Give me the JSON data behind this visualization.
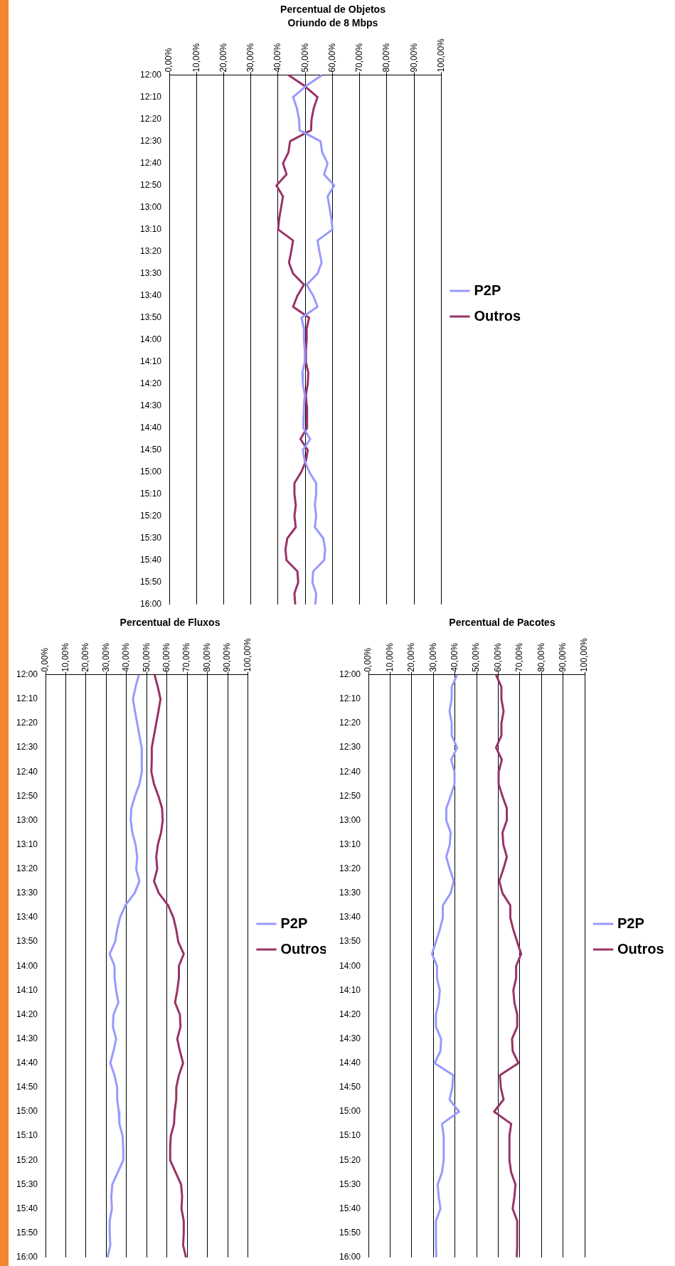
{
  "chart_data": [
    {
      "type": "line",
      "title": "Percentual de Objetos",
      "subtitle": "Oriundo de 8 Mbps",
      "categories": [
        "12:00",
        null,
        "12:10",
        null,
        "12:20",
        null,
        "12:30",
        null,
        "12:40",
        null,
        "12:50",
        null,
        "13:00",
        null,
        "13:10",
        null,
        "13:20",
        null,
        "13:30",
        null,
        "13:40",
        null,
        "13:50",
        null,
        "14:00",
        null,
        "14:10",
        null,
        "14:20",
        null,
        "14:30",
        null,
        "14:40",
        null,
        "14:50",
        null,
        "15:00",
        null,
        "15:10",
        null,
        "15:20",
        null,
        "15:30",
        null,
        "15:40",
        null,
        "15:50",
        null,
        "16:00"
      ],
      "series": [
        {
          "name": "P2P",
          "color": "#9999ff",
          "values": [
            56.2,
            50.2,
            45.5,
            46.9,
            47.7,
            47.9,
            55.6,
            56.2,
            58.2,
            56.9,
            60.6,
            58.2,
            58.9,
            59.6,
            60,
            54.5,
            55.2,
            56,
            54.5,
            50.5,
            52.9,
            54.5,
            48.6,
            49.5,
            49.5,
            49.8,
            49.8,
            48.9,
            49.1,
            49.8,
            49.5,
            49.4,
            49.3,
            51.8,
            49.1,
            49.8,
            51.5,
            54,
            54,
            53.5,
            54,
            53.5,
            56.6,
            57.3,
            56.9,
            52.9,
            52.6,
            54,
            53.7
          ]
        },
        {
          "name": "Outros",
          "color": "#993366",
          "values": [
            43.8,
            49.8,
            54.5,
            53.1,
            52.3,
            52.1,
            44.4,
            43.8,
            41.8,
            43.1,
            39.4,
            41.8,
            41.1,
            40.4,
            40,
            45.5,
            44.8,
            44,
            45.5,
            49.5,
            47.1,
            45.5,
            51.4,
            50.5,
            50.5,
            50.2,
            50.2,
            51.1,
            50.9,
            50.2,
            50.5,
            50.6,
            50.7,
            48.2,
            50.9,
            50.2,
            48.5,
            46,
            46,
            46.5,
            46,
            46.5,
            43.4,
            42.7,
            43.1,
            47.1,
            47.4,
            46,
            46.3
          ]
        }
      ],
      "orientation": "horizontal",
      "xlim": [
        0,
        100
      ],
      "xticks": [
        {
          "value": 0,
          "label": "0,00%"
        },
        {
          "value": 10,
          "label": "10,00%"
        },
        {
          "value": 20,
          "label": "20,00%"
        },
        {
          "value": 30,
          "label": "30,00%"
        },
        {
          "value": 40,
          "label": "40,00%"
        },
        {
          "value": 50,
          "label": "50,00%"
        },
        {
          "value": 60,
          "label": "60,00%"
        },
        {
          "value": 70,
          "label": "70,00%"
        },
        {
          "value": 80,
          "label": "80,00%"
        },
        {
          "value": 90,
          "label": "90,00%"
        },
        {
          "value": 100,
          "label": "100,00%"
        }
      ],
      "grid": "x",
      "legend": "right"
    },
    {
      "type": "line",
      "title": "Percentual de Pacotes",
      "categories": [
        "12:00",
        null,
        "12:10",
        null,
        "12:20",
        null,
        "12:30",
        null,
        "12:40",
        null,
        "12:50",
        null,
        "13:00",
        null,
        "13:10",
        null,
        "13:20",
        null,
        "13:30",
        null,
        "13:40",
        null,
        "13:50",
        null,
        "14:00",
        null,
        "14:10",
        null,
        "14:20",
        null,
        "14:30",
        null,
        "14:40",
        null,
        "14:50",
        null,
        "15:00",
        null,
        "15:10",
        null,
        "15:20",
        null,
        "15:30",
        null,
        "15:40",
        null,
        "15:50",
        null,
        "16:00"
      ],
      "series": [
        {
          "name": "P2P",
          "color": "#9999ff",
          "values": [
            41,
            38.5,
            38.5,
            37.5,
            38.5,
            38.5,
            41,
            38.3,
            39.8,
            39.8,
            38,
            36,
            36,
            38,
            37.6,
            36,
            37.6,
            39.5,
            38,
            34.4,
            34.4,
            33,
            31.2,
            29.4,
            31.7,
            31.7,
            33,
            32.5,
            31.2,
            31.2,
            33.6,
            33.3,
            30.6,
            39.2,
            38.8,
            37.5,
            41.9,
            34,
            34.8,
            34.8,
            34.8,
            34,
            32,
            32.5,
            33.3,
            31.2,
            31.2,
            31.2,
            31.4
          ]
        },
        {
          "name": "Outros",
          "color": "#993366",
          "values": [
            59,
            61.5,
            61.5,
            62.5,
            61.5,
            61.5,
            59,
            61.7,
            60.2,
            60.2,
            62,
            64,
            64,
            62,
            62.4,
            64,
            62.4,
            60.5,
            62,
            65.6,
            65.6,
            67,
            68.8,
            70.6,
            68.3,
            68.3,
            67,
            67.5,
            68.8,
            68.8,
            66.4,
            66.7,
            69.4,
            60.8,
            61.2,
            62.5,
            58.1,
            66,
            65.2,
            65.2,
            65.2,
            66,
            68,
            67.5,
            66.7,
            68.8,
            68.8,
            68.8,
            68.6
          ]
        }
      ],
      "orientation": "horizontal",
      "xlim": [
        0,
        100
      ],
      "xticks": [
        {
          "value": 0,
          "label": "0,00%"
        },
        {
          "value": 10,
          "label": "10,00%"
        },
        {
          "value": 20,
          "label": "20,00%"
        },
        {
          "value": 30,
          "label": "30,00%"
        },
        {
          "value": 40,
          "label": "40,00%"
        },
        {
          "value": 50,
          "label": "50,00%"
        },
        {
          "value": 60,
          "label": "60,00%"
        },
        {
          "value": 70,
          "label": "70,00%"
        },
        {
          "value": 80,
          "label": "80,00%"
        },
        {
          "value": 90,
          "label": "90,00%"
        },
        {
          "value": 100,
          "label": "100,00%"
        }
      ],
      "grid": "x",
      "legend": "right"
    },
    {
      "type": "line",
      "title": "Percentual de Fluxos",
      "categories": [
        "12:00",
        null,
        "12:10",
        null,
        "12:20",
        null,
        "12:30",
        null,
        "12:40",
        null,
        "12:50",
        null,
        "13:00",
        null,
        "13:10",
        null,
        "13:20",
        null,
        "13:30",
        null,
        "13:40",
        null,
        "13:50",
        null,
        "14:00",
        null,
        "14:10",
        null,
        "14:20",
        null,
        "14:30",
        null,
        "14:40",
        null,
        "14:50",
        null,
        "15:00",
        null,
        "15:10",
        null,
        "15:20",
        null,
        "15:30",
        null,
        "15:40",
        null,
        "15:50",
        null,
        "16:00"
      ],
      "series": [
        {
          "name": "P2P",
          "color": "#9999ff",
          "values": [
            46.1,
            44.5,
            43.2,
            44.2,
            45.3,
            46.4,
            47.5,
            47.5,
            47.7,
            46.4,
            44.2,
            42.4,
            42.1,
            42.9,
            44.5,
            45.3,
            44.8,
            46.4,
            44,
            39.4,
            36.8,
            35.4,
            34.4,
            31.7,
            34.1,
            34.1,
            34.9,
            36,
            33.6,
            33.3,
            34.9,
            33.6,
            32,
            34.1,
            35.4,
            35.4,
            36.2,
            36.5,
            38.1,
            38.4,
            38.4,
            35.7,
            33,
            32.5,
            32.8,
            31.7,
            31.7,
            32,
            30.6
          ]
        },
        {
          "name": "Outros",
          "color": "#993366",
          "values": [
            53.9,
            55.5,
            56.8,
            55.8,
            54.7,
            53.6,
            52.5,
            52.5,
            52.3,
            53.6,
            55.8,
            57.6,
            57.9,
            57.1,
            55.5,
            54.7,
            55.2,
            53.6,
            56,
            60.6,
            63.2,
            64.6,
            65.6,
            68.3,
            65.9,
            65.9,
            65.1,
            64,
            66.4,
            66.7,
            65.1,
            66.4,
            68,
            65.9,
            64.6,
            64.6,
            63.8,
            63.5,
            61.9,
            61.6,
            61.6,
            64.3,
            67,
            67.5,
            67.2,
            68.3,
            68.3,
            68,
            69.4
          ]
        }
      ],
      "orientation": "horizontal",
      "xlim": [
        0,
        100
      ],
      "xticks": [
        {
          "value": 0,
          "label": "0,00%"
        },
        {
          "value": 10,
          "label": "10,00%"
        },
        {
          "value": 20,
          "label": "20,00%"
        },
        {
          "value": 30,
          "label": "30,00%"
        },
        {
          "value": 40,
          "label": "40,00%"
        },
        {
          "value": 50,
          "label": "50,00%"
        },
        {
          "value": 60,
          "label": "60,00%"
        },
        {
          "value": 70,
          "label": "70,00%"
        },
        {
          "value": 80,
          "label": "80,00%"
        },
        {
          "value": 90,
          "label": "90,00%"
        },
        {
          "value": 100,
          "label": "100,00%"
        }
      ],
      "grid": "x",
      "legend": "right"
    }
  ]
}
